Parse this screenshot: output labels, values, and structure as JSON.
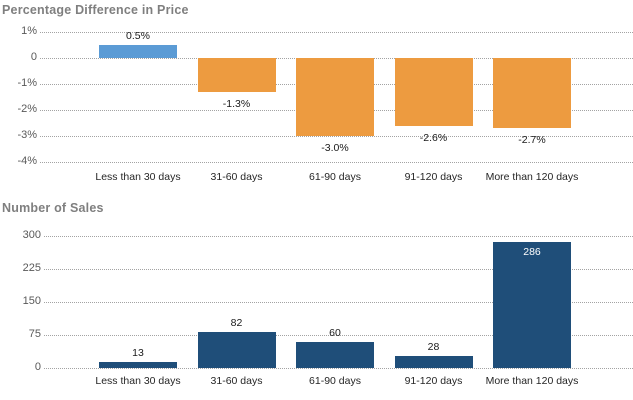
{
  "page": {
    "background": "#FFFFFF"
  },
  "chart_data": [
    {
      "type": "bar",
      "title": "Percentage Difference in Price",
      "categories": [
        "Less than 30 days",
        "31-60 days",
        "61-90 days",
        "91-120 days",
        "More than 120 days"
      ],
      "values": [
        0.5,
        -1.3,
        -3.0,
        -2.6,
        -2.7
      ],
      "value_labels": [
        "0.5%",
        "-1.3%",
        "-3.0%",
        "-2.6%",
        "-2.7%"
      ],
      "yticks": [
        {
          "value": 1,
          "label": "1%"
        },
        {
          "value": 0,
          "label": "0"
        },
        {
          "value": -1,
          "label": "-1%"
        },
        {
          "value": -2,
          "label": "-2%"
        },
        {
          "value": -3,
          "label": "-3%"
        },
        {
          "value": -4,
          "label": "-4%"
        }
      ],
      "ylim": [
        -4,
        1
      ],
      "grid": "dotted-horizontal",
      "legend": "none",
      "bar_colors": [
        "#5B9BD5",
        "#ED9B40",
        "#ED9B40",
        "#ED9B40",
        "#ED9B40"
      ]
    },
    {
      "type": "bar",
      "title": "Number of Sales",
      "categories": [
        "Less than 30 days",
        "31-60 days",
        "61-90 days",
        "91-120 days",
        "More than 120 days"
      ],
      "values": [
        13,
        82,
        60,
        28,
        286
      ],
      "value_labels": [
        "13",
        "82",
        "60",
        "28",
        "286"
      ],
      "yticks": [
        {
          "value": 300,
          "label": "300"
        },
        {
          "value": 225,
          "label": "225"
        },
        {
          "value": 150,
          "label": "150"
        },
        {
          "value": 75,
          "label": "75"
        },
        {
          "value": 0,
          "label": "0"
        }
      ],
      "ylim": [
        0,
        300
      ],
      "grid": "dotted-horizontal",
      "legend": "none",
      "bar_colors": [
        "#1F4E79",
        "#1F4E79",
        "#1F4E79",
        "#1F4E79",
        "#1F4E79"
      ]
    }
  ],
  "colors": {
    "title_text": "#7F7F7F",
    "tick_text": "#595959",
    "category_text": "#262626",
    "value_text": "#1A1A1A",
    "value_text_inside": "#FFFFFF",
    "gridline": "#A3A3A3",
    "positive_bar": "#5B9BD5",
    "negative_bar": "#ED9B40",
    "sales_bar": "#1F4E79"
  }
}
